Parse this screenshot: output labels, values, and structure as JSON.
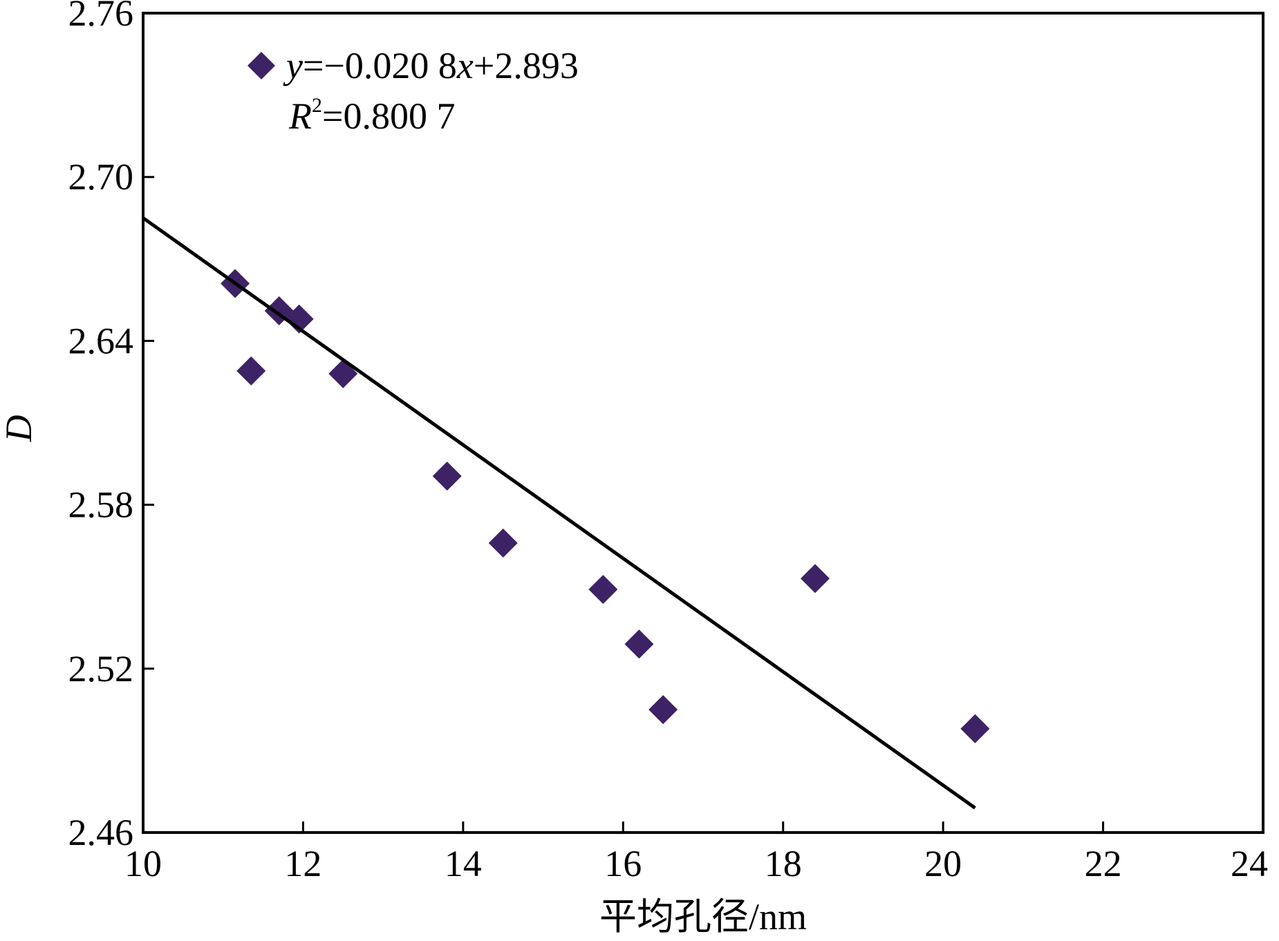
{
  "chart_data": {
    "type": "scatter",
    "xlabel": "平均孔径/nm",
    "ylabel": "D",
    "xlim": [
      10,
      24
    ],
    "ylim": [
      2.46,
      2.76
    ],
    "x_ticks": [
      "10",
      "12",
      "14",
      "16",
      "18",
      "20",
      "22",
      "24"
    ],
    "y_ticks": [
      "2.46",
      "2.52",
      "2.58",
      "2.64",
      "2.70",
      "2.76"
    ],
    "grid": false,
    "legend_position": "top-left",
    "series": [
      {
        "type": "scatter",
        "marker": "diamond",
        "color": "#3d2266",
        "points": [
          {
            "x": 11.15,
            "y": 2.661
          },
          {
            "x": 11.35,
            "y": 2.629
          },
          {
            "x": 11.7,
            "y": 2.651
          },
          {
            "x": 11.95,
            "y": 2.648
          },
          {
            "x": 12.5,
            "y": 2.628
          },
          {
            "x": 13.8,
            "y": 2.5905
          },
          {
            "x": 14.5,
            "y": 2.566
          },
          {
            "x": 15.75,
            "y": 2.549
          },
          {
            "x": 16.2,
            "y": 2.529
          },
          {
            "x": 16.5,
            "y": 2.505
          },
          {
            "x": 18.4,
            "y": 2.553
          },
          {
            "x": 20.4,
            "y": 2.498
          }
        ]
      },
      {
        "type": "line",
        "color": "#000000",
        "x": [
          10,
          20.4
        ],
        "y": [
          2.685,
          2.469
        ]
      }
    ],
    "annotations": {
      "equation_prefix": "y",
      "equation_middle": "=−0.020 8",
      "equation_var": "x",
      "equation_suffix": "+2.893",
      "r2_prefix": "R",
      "r2_sup": "2",
      "r2_suffix": "=0.800 7"
    }
  }
}
